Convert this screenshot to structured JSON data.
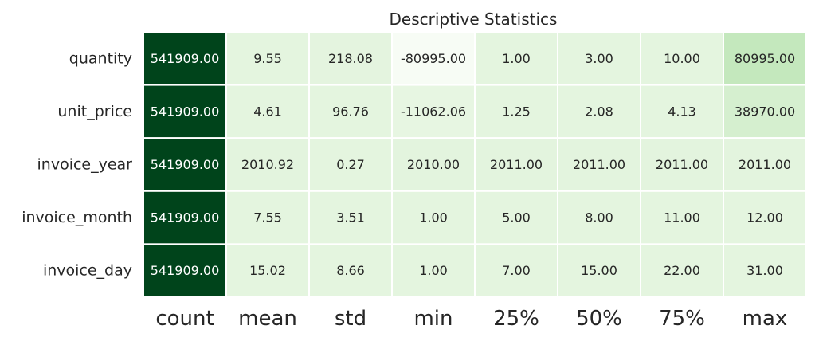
{
  "chart_data": {
    "type": "heatmap",
    "title": "Descriptive Statistics",
    "colormap": "Greens",
    "cell_border_color": "#ffffff",
    "columns": [
      "count",
      "mean",
      "std",
      "min",
      "25%",
      "50%",
      "75%",
      "max"
    ],
    "rows": [
      "quantity",
      "unit_price",
      "invoice_year",
      "invoice_month",
      "invoice_day"
    ],
    "values": [
      [
        541909.0,
        9.55,
        218.08,
        -80995.0,
        1.0,
        3.0,
        10.0,
        80995.0
      ],
      [
        541909.0,
        4.61,
        96.76,
        -11062.06,
        1.25,
        2.08,
        4.13,
        38970.0
      ],
      [
        541909.0,
        2010.92,
        0.27,
        2010.0,
        2011.0,
        2011.0,
        2011.0,
        2011.0
      ],
      [
        541909.0,
        7.55,
        3.51,
        1.0,
        5.0,
        8.0,
        11.0,
        12.0
      ],
      [
        541909.0,
        15.02,
        8.66,
        1.0,
        7.0,
        15.0,
        22.0,
        31.0
      ]
    ],
    "value_labels": [
      [
        "541909.00",
        "9.55",
        "218.08",
        "-80995.00",
        "1.00",
        "3.00",
        "10.00",
        "80995.00"
      ],
      [
        "541909.00",
        "4.61",
        "96.76",
        "-11062.06",
        "1.25",
        "2.08",
        "4.13",
        "38970.00"
      ],
      [
        "541909.00",
        "2010.92",
        "0.27",
        "2010.00",
        "2011.00",
        "2011.00",
        "2011.00",
        "2011.00"
      ],
      [
        "541909.00",
        "7.55",
        "3.51",
        "1.00",
        "5.00",
        "8.00",
        "11.00",
        "12.00"
      ],
      [
        "541909.00",
        "15.02",
        "8.66",
        "1.00",
        "7.00",
        "15.00",
        "22.00",
        "31.00"
      ]
    ],
    "grid": false,
    "colorbar": false
  }
}
